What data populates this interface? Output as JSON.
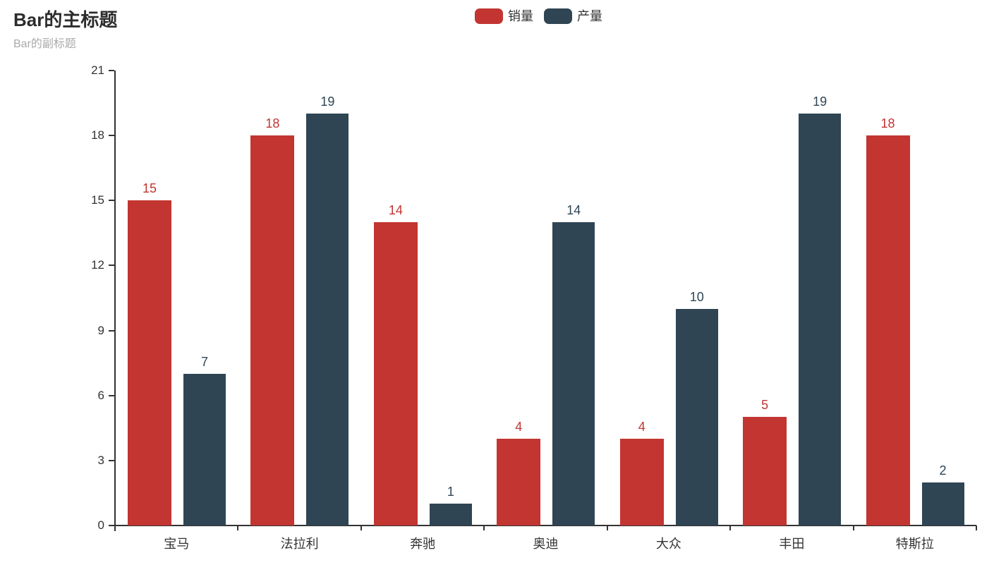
{
  "title": {
    "main": "Bar的主标题",
    "sub": "Bar的副标题"
  },
  "colors": {
    "series_sales": "#c23531",
    "series_production": "#2f4554",
    "axis": "#333333",
    "subtitle": "#aaaaaa",
    "title": "#2c2c2c",
    "background": "#ffffff"
  },
  "chart_data": {
    "type": "bar",
    "title": "Bar的主标题",
    "subtitle": "Bar的副标题",
    "categories": [
      "宝马",
      "法拉利",
      "奔驰",
      "奥迪",
      "大众",
      "丰田",
      "特斯拉"
    ],
    "series": [
      {
        "name": "销量",
        "color": "#c23531",
        "values": [
          15,
          18,
          14,
          4,
          4,
          5,
          18
        ]
      },
      {
        "name": "产量",
        "color": "#2f4554",
        "values": [
          7,
          19,
          1,
          14,
          10,
          19,
          2
        ]
      }
    ],
    "xlabel": "",
    "ylabel": "",
    "ylim": [
      0,
      21
    ],
    "yticks": [
      0,
      3,
      6,
      9,
      12,
      15,
      18,
      21
    ],
    "grid": false,
    "value_labels": true,
    "legend_position": "top-center"
  }
}
